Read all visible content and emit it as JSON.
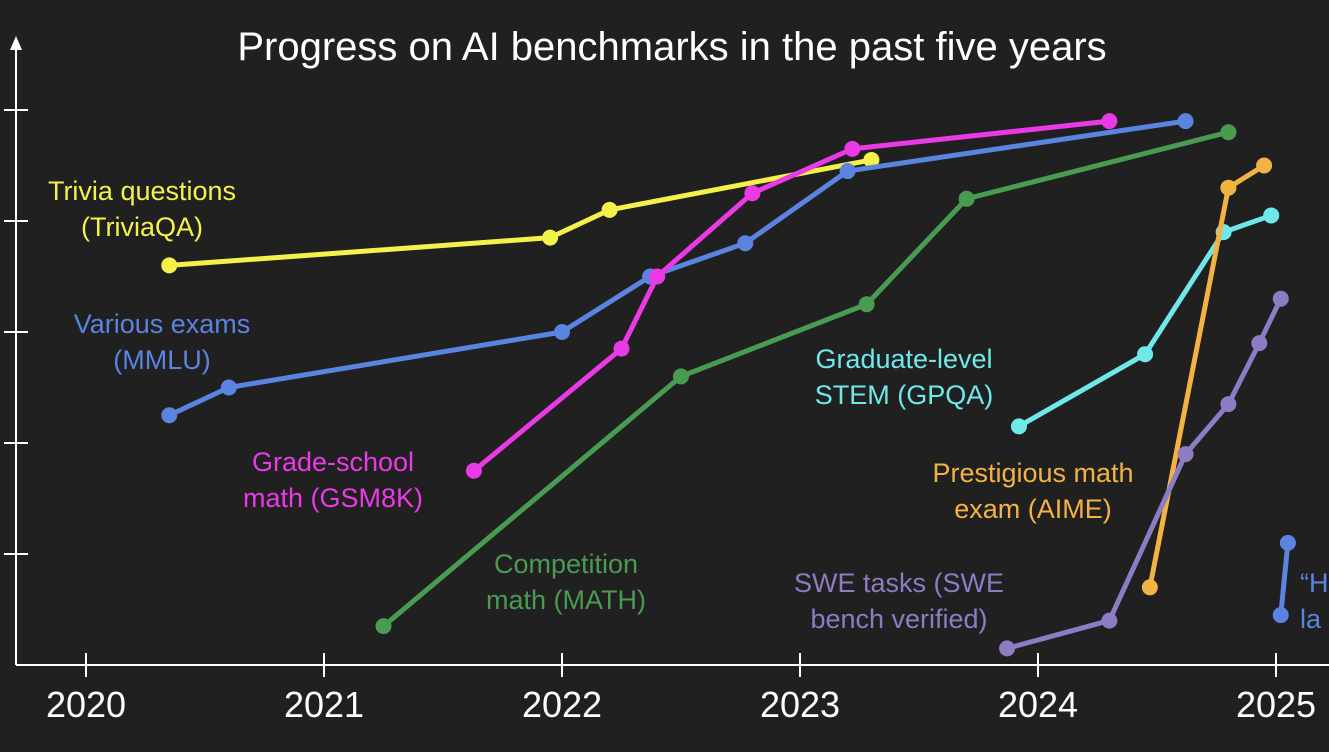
{
  "chart_data": {
    "type": "line",
    "title": "Progress on AI benchmarks in the past five years",
    "xlabel": "",
    "ylabel": "",
    "x_ticks": [
      2020,
      2021,
      2022,
      2023,
      2024,
      2025
    ],
    "x_range": [
      2019.7,
      2025.25
    ],
    "y_range": [
      0,
      100
    ],
    "y_ticks": [
      0,
      20,
      40,
      60,
      80,
      100
    ],
    "y_tick_labels_shown": false,
    "grid": false,
    "legend": "inline labels next to each line",
    "series": [
      {
        "name": "Trivia questions (TriviaQA)",
        "label_lines": [
          "Trivia questions",
          "(TriviaQA)"
        ],
        "color": "#f4f24a",
        "x": [
          2020.35,
          2021.95,
          2022.2,
          2023.3
        ],
        "y": [
          72,
          77,
          82,
          91
        ]
      },
      {
        "name": "Various exams (MMLU)",
        "label_lines": [
          "Various exams",
          "(MMLU)"
        ],
        "color": "#5b83e0",
        "x": [
          2020.35,
          2020.6,
          2022.0,
          2022.37,
          2022.77,
          2023.2,
          2024.62
        ],
        "y": [
          45,
          50,
          60,
          70,
          76,
          89,
          98
        ]
      },
      {
        "name": "Grade-school math (GSM8K)",
        "label_lines": [
          "Grade-school",
          "math (GSM8K)"
        ],
        "color": "#e93ae6",
        "x": [
          2021.63,
          2022.25,
          2022.4,
          2022.8,
          2023.22,
          2024.3
        ],
        "y": [
          35,
          57,
          70,
          85,
          93,
          98
        ]
      },
      {
        "name": "Competition math (MATH)",
        "label_lines": [
          "Competition",
          "math (MATH)"
        ],
        "color": "#4a9b52",
        "x": [
          2021.25,
          2022.5,
          2023.28,
          2023.7,
          2024.8
        ],
        "y": [
          7,
          52,
          65,
          84,
          96
        ]
      },
      {
        "name": "Graduate-level STEM (GPQA)",
        "label_lines": [
          "Graduate-level",
          "STEM (GPQA)"
        ],
        "color": "#6fe8ea",
        "x": [
          2023.92,
          2024.45,
          2024.78,
          2024.98
        ],
        "y": [
          43,
          56,
          78,
          81
        ]
      },
      {
        "name": "Prestigious math exam (AIME)",
        "label_lines": [
          "Prestigious math",
          "exam (AIME)"
        ],
        "color": "#f3b344",
        "x": [
          2024.47,
          2024.8,
          2024.95
        ],
        "y": [
          14,
          86,
          90
        ]
      },
      {
        "name": "SWE tasks (SWE bench verified)",
        "label_lines": [
          "SWE tasks (SWE",
          "bench verified)"
        ],
        "color": "#8d7bc3",
        "x": [
          2023.87,
          2024.3,
          2024.62,
          2024.8,
          2024.93,
          2025.02
        ],
        "y": [
          3,
          8,
          38,
          47,
          58,
          66
        ]
      },
      {
        "name": "“H… la…",
        "label_lines": [
          "“H",
          "la"
        ],
        "color": "#5b83e0",
        "x": [
          2025.02,
          2025.05
        ],
        "y": [
          9,
          22
        ]
      }
    ]
  }
}
